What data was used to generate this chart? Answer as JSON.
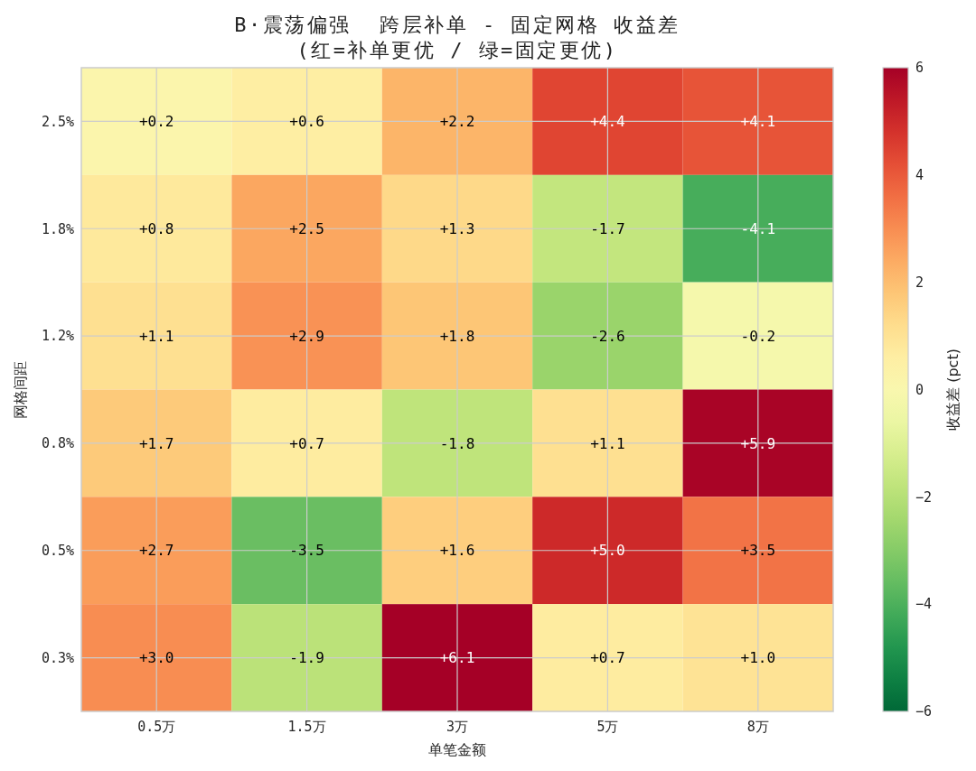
{
  "chart_data": {
    "type": "heatmap",
    "title": "B·震荡偏强  跨层补单 - 固定网格 收益差",
    "subtitle": "(红=补单更优 / 绿=固定更优)",
    "xlabel": "单笔金额",
    "ylabel": "网格间距",
    "clabel": "收益差 (pct)",
    "categories": [
      "0.5万",
      "1.5万",
      "3万",
      "5万",
      "8万"
    ],
    "y_categories": [
      "2.5%",
      "1.8%",
      "1.2%",
      "0.8%",
      "0.5%",
      "0.3%"
    ],
    "cells": [
      [
        0.2,
        0.6,
        2.2,
        4.4,
        4.1
      ],
      [
        0.8,
        2.5,
        1.3,
        -1.7,
        -4.1
      ],
      [
        1.1,
        2.9,
        1.8,
        -2.6,
        -0.2
      ],
      [
        1.7,
        0.7,
        -1.8,
        1.1,
        5.9
      ],
      [
        2.7,
        -3.5,
        1.6,
        5.0,
        3.5
      ],
      [
        3.0,
        -1.9,
        6.1,
        0.7,
        1.0
      ]
    ],
    "cell_labels": [
      [
        "+0.2",
        "+0.6",
        "+2.2",
        "+4.4",
        "+4.1"
      ],
      [
        "+0.8",
        "+2.5",
        "+1.3",
        "-1.7",
        "-4.1"
      ],
      [
        "+1.1",
        "+2.9",
        "+1.8",
        "-2.6",
        "-0.2"
      ],
      [
        "+1.7",
        "+0.7",
        "-1.8",
        "+1.1",
        "+5.9"
      ],
      [
        "+2.7",
        "-3.5",
        "+1.6",
        "+5.0",
        "+3.5"
      ],
      [
        "+3.0",
        "-1.9",
        "+6.1",
        "+0.7",
        "+1.0"
      ]
    ],
    "clim": [
      -6,
      6
    ],
    "cticks": [
      {
        "value": -6,
        "label": "−6"
      },
      {
        "value": -4,
        "label": "−4"
      },
      {
        "value": -2,
        "label": "−2"
      },
      0,
      2,
      4,
      6
    ],
    "grid": true
  }
}
